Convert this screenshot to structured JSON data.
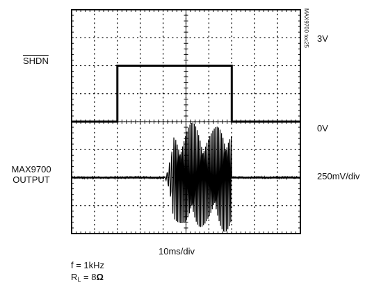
{
  "labels": {
    "shdn": "SHDN",
    "output_line1": "MAX9700",
    "output_line2": "OUTPUT",
    "v_high": "3V",
    "v_zero": "0V",
    "v_scale": "250mV/div",
    "t_scale": "10ms/div",
    "freq": "f = 1kHz",
    "load_prefix": "R",
    "load_sub": "L",
    "load_eq": " = 8",
    "load_unit": "Ω",
    "toc_id": "MAX9700 toc25"
  },
  "chart_data": {
    "type": "line",
    "title": "",
    "grid": true,
    "divisions": {
      "x": 10,
      "y": 8
    },
    "x_unit_per_div": "10ms",
    "series": [
      {
        "name": "SHDN",
        "volts_per_div": "3V per 2 div",
        "points": [
          [
            0,
            0
          ],
          [
            20,
            0
          ],
          [
            20,
            3
          ],
          [
            70,
            3
          ],
          [
            70,
            0
          ],
          [
            100,
            0
          ]
        ]
      },
      {
        "name": "MAX9700 OUTPUT",
        "volts_per_div": "250mV/div",
        "pop_start_ms": 40,
        "signal_ms": [
          45,
          70
        ],
        "envelope_mV": [
          -450,
          450
        ],
        "frequency_kHz": 1
      }
    ]
  }
}
